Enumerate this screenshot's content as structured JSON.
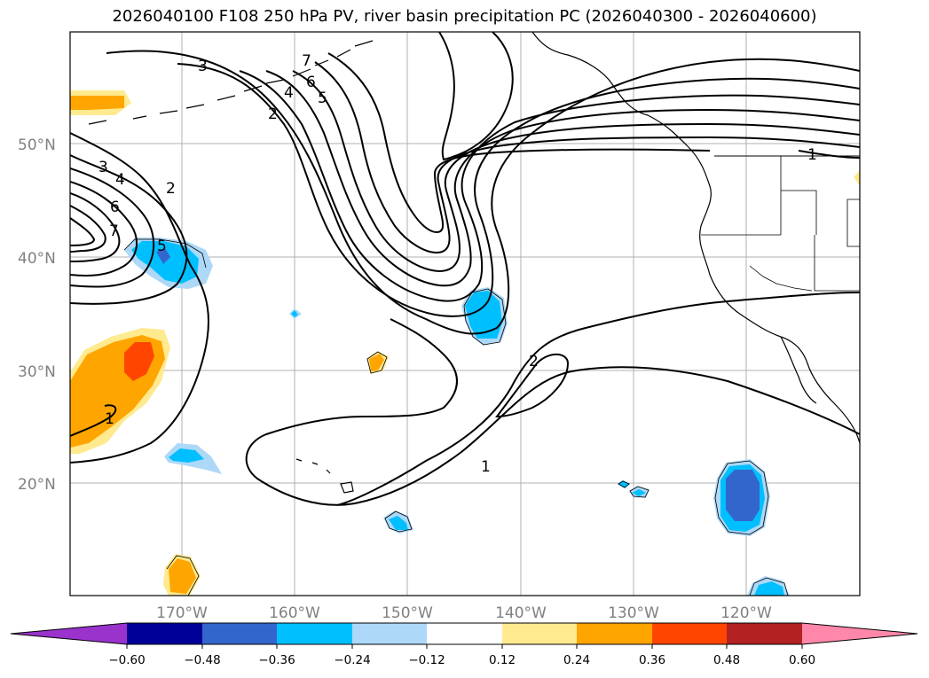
{
  "title": "2026040100 F108 250 hPa PV, river basin precipitation PC (2026040300 - 2026040600)",
  "map": {
    "lat_labels": [
      "50°N",
      "40°N",
      "30°N",
      "20°N"
    ],
    "lon_labels": [
      "170°W",
      "160°W",
      "150°W",
      "140°W",
      "130°W",
      "120°W"
    ],
    "contour_labels": [
      "3",
      "7",
      "6",
      "4",
      "5",
      "2",
      "3",
      "4",
      "6",
      "7",
      "2",
      "5",
      "2",
      "1",
      "1",
      "1"
    ]
  },
  "colorbar": {
    "tick_labels": [
      "−0.60",
      "−0.48",
      "−0.36",
      "−0.24",
      "−0.12",
      "0.12",
      "0.24",
      "0.36",
      "0.48",
      "0.60"
    ],
    "colors": [
      "#9933cc",
      "#000099",
      "#3366cc",
      "#00bfff",
      "#add8f7",
      "#ffffff",
      "#ffea8f",
      "#ffa500",
      "#ff4500",
      "#b22222",
      "#ff88aa"
    ]
  }
}
